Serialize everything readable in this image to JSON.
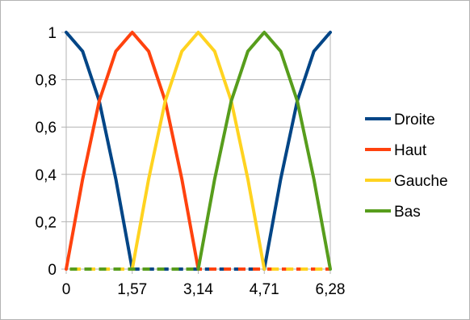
{
  "chart_data": {
    "type": "line",
    "title": "",
    "xlabel": "",
    "ylabel": "",
    "x_ticks": [
      "0",
      "1,57",
      "3,14",
      "4,71",
      "6,28"
    ],
    "y_ticks": [
      "0",
      "0,2",
      "0,4",
      "0,6",
      "0,8",
      "1"
    ],
    "xlim": [
      0,
      6.28
    ],
    "ylim": [
      0,
      1
    ],
    "grid": "horizontal",
    "legend_position": "right",
    "series": [
      {
        "name": "Droite",
        "color": "#004586",
        "x": [
          0,
          0.39,
          0.785,
          1.18,
          1.57,
          3.14,
          4.71,
          5.1,
          5.495,
          5.89,
          6.28
        ],
        "values": [
          1,
          0.92,
          0.71,
          0.38,
          0,
          0,
          0,
          0.38,
          0.71,
          0.92,
          1
        ]
      },
      {
        "name": "Haut",
        "color": "#ff420e",
        "x": [
          0,
          0.39,
          0.785,
          1.18,
          1.57,
          1.96,
          2.355,
          2.75,
          3.14,
          4.71,
          6.28
        ],
        "values": [
          0,
          0.38,
          0.71,
          0.92,
          1,
          0.92,
          0.71,
          0.38,
          0,
          0,
          0
        ]
      },
      {
        "name": "Gauche",
        "color": "#ffd320",
        "x": [
          0,
          1.57,
          1.96,
          2.355,
          2.75,
          3.14,
          3.53,
          3.925,
          4.32,
          4.71,
          6.28
        ],
        "values": [
          0,
          0,
          0.38,
          0.71,
          0.92,
          1,
          0.92,
          0.71,
          0.38,
          0,
          0
        ]
      },
      {
        "name": "Bas",
        "color": "#579d1c",
        "x": [
          0,
          3.14,
          3.53,
          3.925,
          4.32,
          4.71,
          5.1,
          5.495,
          5.89,
          6.28
        ],
        "values": [
          0,
          0,
          0.38,
          0.71,
          0.92,
          1,
          0.92,
          0.71,
          0.38,
          0
        ]
      }
    ]
  }
}
